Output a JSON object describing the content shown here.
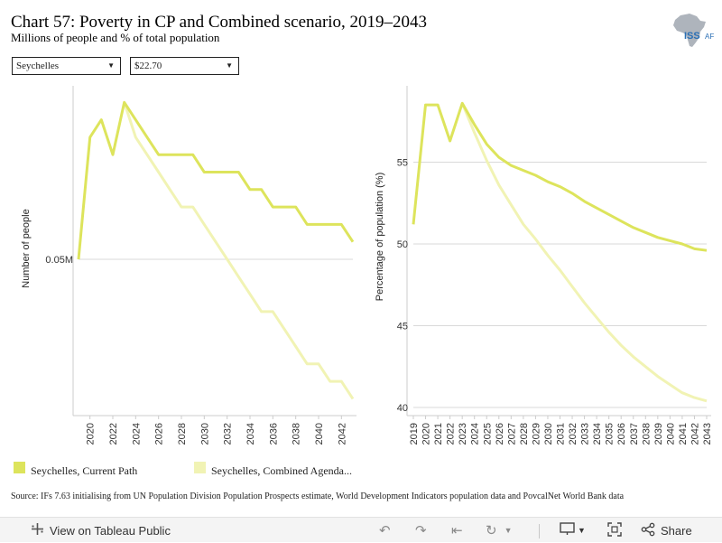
{
  "header": {
    "title": "Chart 57: Poverty in CP and Combined scenario, 2019–2043",
    "subtitle": "Millions of people and % of total population",
    "logo_text": "ISS",
    "logo_text2": "AFI"
  },
  "filters": {
    "country": "Seychelles",
    "threshold": "$22.70"
  },
  "colors": {
    "current_path": "#dde45c",
    "combined_agenda": "#f1f3b4",
    "gridline": "#d9d9d9",
    "axis": "#888888"
  },
  "chart_data": [
    {
      "type": "line",
      "ylabel": "Number of people",
      "y_tick_labels": [
        "0.05M"
      ],
      "x": [
        2019,
        2020,
        2021,
        2022,
        2023,
        2024,
        2025,
        2026,
        2027,
        2028,
        2029,
        2030,
        2031,
        2032,
        2033,
        2034,
        2035,
        2036,
        2037,
        2038,
        2039,
        2040,
        2041,
        2042,
        2043
      ],
      "x_tick_labels": [
        "2020",
        "2022",
        "2024",
        "2026",
        "2028",
        "2030",
        "2032",
        "2034",
        "2036",
        "2038",
        "2040",
        "2042"
      ],
      "series": [
        {
          "name": "Seychelles, Current Path",
          "values": [
            0.05,
            0.057,
            0.058,
            0.056,
            0.059,
            0.058,
            0.057,
            0.056,
            0.056,
            0.056,
            0.056,
            0.055,
            0.055,
            0.055,
            0.055,
            0.054,
            0.054,
            0.053,
            0.053,
            0.053,
            0.052,
            0.052,
            0.052,
            0.052,
            0.051
          ]
        },
        {
          "name": "Seychelles, Combined Agenda...",
          "values": [
            null,
            null,
            null,
            null,
            0.059,
            0.057,
            0.056,
            0.055,
            0.054,
            0.053,
            0.053,
            0.052,
            0.051,
            0.05,
            0.049,
            0.048,
            0.047,
            0.047,
            0.046,
            0.045,
            0.044,
            0.044,
            0.043,
            0.043,
            0.042
          ]
        }
      ]
    },
    {
      "type": "line",
      "ylabel": "Percentage of population (%)",
      "y_tick_labels": [
        "40",
        "45",
        "50",
        "55"
      ],
      "ylim": [
        40,
        60
      ],
      "x": [
        2019,
        2020,
        2021,
        2022,
        2023,
        2024,
        2025,
        2026,
        2027,
        2028,
        2029,
        2030,
        2031,
        2032,
        2033,
        2034,
        2035,
        2036,
        2037,
        2038,
        2039,
        2040,
        2041,
        2042,
        2043
      ],
      "x_tick_labels": [
        "2019",
        "2020",
        "2021",
        "2022",
        "2023",
        "2024",
        "2025",
        "2026",
        "2027",
        "2028",
        "2029",
        "2030",
        "2031",
        "2032",
        "2033",
        "2034",
        "2035",
        "2036",
        "2037",
        "2038",
        "2039",
        "2040",
        "2041",
        "2042",
        "2043"
      ],
      "series": [
        {
          "name": "Seychelles, Current Path",
          "values": [
            51.2,
            58.5,
            58.5,
            56.3,
            58.6,
            57.3,
            56.1,
            55.3,
            54.8,
            54.5,
            54.2,
            53.8,
            53.5,
            53.1,
            52.6,
            52.2,
            51.8,
            51.4,
            51.0,
            50.7,
            50.4,
            50.2,
            50.0,
            49.7,
            49.6
          ]
        },
        {
          "name": "Seychelles, Combined Agenda...",
          "values": [
            null,
            null,
            null,
            null,
            58.6,
            56.8,
            55.1,
            53.6,
            52.4,
            51.2,
            50.3,
            49.3,
            48.4,
            47.4,
            46.4,
            45.5,
            44.6,
            43.8,
            43.1,
            42.5,
            41.9,
            41.4,
            40.9,
            40.6,
            40.4
          ]
        }
      ]
    }
  ],
  "legend": {
    "items": [
      "Seychelles, Current Path",
      "Seychelles, Combined Agenda..."
    ]
  },
  "source": "Source: IFs 7.63 initialising from UN Population Division Population Prospects estimate, World Development Indicators population data and PovcalNet World Bank data",
  "toolbar": {
    "view_label": "View on Tableau Public",
    "share_label": "Share"
  },
  "icons": [
    "tableau-icon",
    "undo-icon",
    "redo-icon",
    "revert-icon",
    "refresh-icon",
    "download-icon",
    "fullscreen-icon",
    "share-icon"
  ]
}
